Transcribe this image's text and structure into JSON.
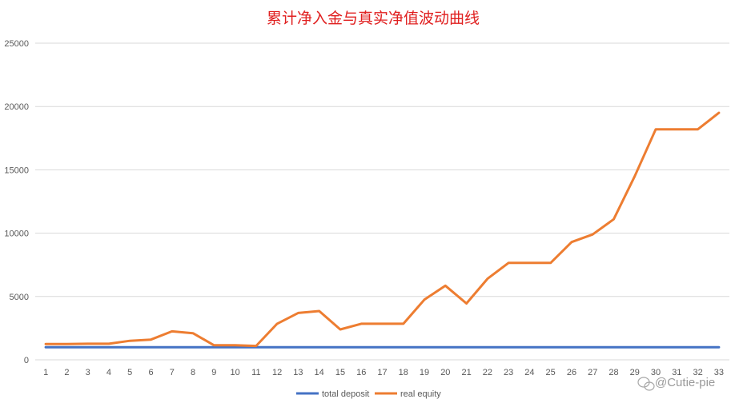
{
  "chart_data": {
    "type": "line",
    "title": "累计净入金与真实净值波动曲线",
    "xlabel": "",
    "ylabel": "",
    "ylim": [
      0,
      25000
    ],
    "yticks": [
      0,
      5000,
      10000,
      15000,
      20000,
      25000
    ],
    "grid": true,
    "legend_position": "bottom",
    "categories": [
      "1",
      "2",
      "3",
      "4",
      "5",
      "6",
      "7",
      "8",
      "9",
      "10",
      "11",
      "12",
      "13",
      "14",
      "15",
      "16",
      "17",
      "18",
      "19",
      "20",
      "21",
      "22",
      "23",
      "24",
      "25",
      "26",
      "27",
      "28",
      "29",
      "30",
      "31",
      "32",
      "33"
    ],
    "series": [
      {
        "name": "total deposit",
        "color": "#4472c4",
        "values": [
          1000,
          1000,
          1000,
          1000,
          1000,
          1000,
          1000,
          1000,
          1000,
          1000,
          1000,
          1000,
          1000,
          1000,
          1000,
          1000,
          1000,
          1000,
          1000,
          1000,
          1000,
          1000,
          1000,
          1000,
          1000,
          1000,
          1000,
          1000,
          1000,
          1000,
          1000,
          1000,
          1000
        ]
      },
      {
        "name": "real equity",
        "color": "#ed7d31",
        "values": [
          1250,
          1250,
          1270,
          1270,
          1500,
          1600,
          2250,
          2100,
          1150,
          1150,
          1100,
          2850,
          3700,
          3850,
          2400,
          2850,
          2850,
          2850,
          4750,
          5850,
          4450,
          6400,
          7650,
          7650,
          7650,
          9300,
          9900,
          11100,
          14500,
          18200,
          18200,
          18200,
          19500
        ]
      }
    ]
  },
  "watermark": "@Cutie-pie"
}
